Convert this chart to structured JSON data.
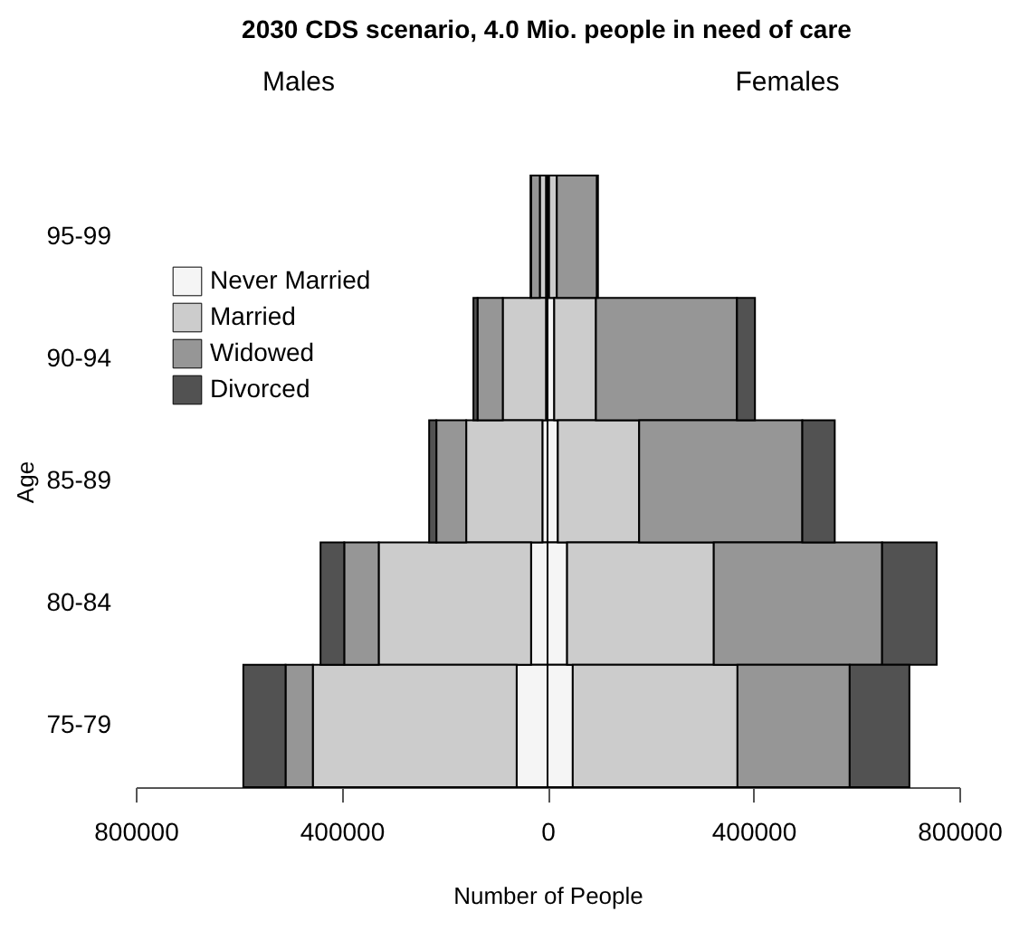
{
  "chart_data": {
    "type": "bar",
    "orientation": "horizontal",
    "stacked": true,
    "title": "2030 CDS scenario, 4.0 Mio. people in need of care",
    "xlabel": "Number of People",
    "ylabel": "Age",
    "annotations": [
      "Males",
      "Females"
    ],
    "categories": [
      "95-99",
      "90-94",
      "85-89",
      "80-84",
      "75-79"
    ],
    "series": [
      {
        "name": "Never Married",
        "color": "#f5f5f5",
        "values": [
          3000,
          13000,
          20000,
          38000,
          49000
        ]
      },
      {
        "color": "#f5f5f5",
        "values": [
          -3000,
          -3000,
          -10000,
          -32000,
          -60000
        ]
      },
      {
        "name": "Married",
        "color": "#cccccc",
        "values": [
          15000,
          81000,
          158000,
          285000,
          320000
        ]
      },
      {
        "color": "#cccccc",
        "values": [
          -12000,
          -84000,
          -148000,
          -296000,
          -396000
        ]
      },
      {
        "name": "Widowed",
        "color": "#969696",
        "values": [
          78000,
          274000,
          317000,
          327000,
          218000
        ]
      },
      {
        "color": "#969696",
        "values": [
          -17000,
          -49000,
          -58000,
          -67000,
          -53000
        ]
      },
      {
        "name": "Divorced",
        "color": "#525252",
        "values": [
          2000,
          35000,
          63000,
          106000,
          116000
        ]
      },
      {
        "color": "#525252",
        "values": [
          -1000,
          -8000,
          -14000,
          -46000,
          -82000
        ]
      }
    ],
    "xlim": [
      -800000,
      800000
    ],
    "xticks": [
      {
        "value": -800000,
        "label": "800000"
      },
      {
        "value": -400000,
        "label": "400000"
      },
      0,
      400000,
      800000
    ],
    "legend": "top left",
    "grid": false
  }
}
